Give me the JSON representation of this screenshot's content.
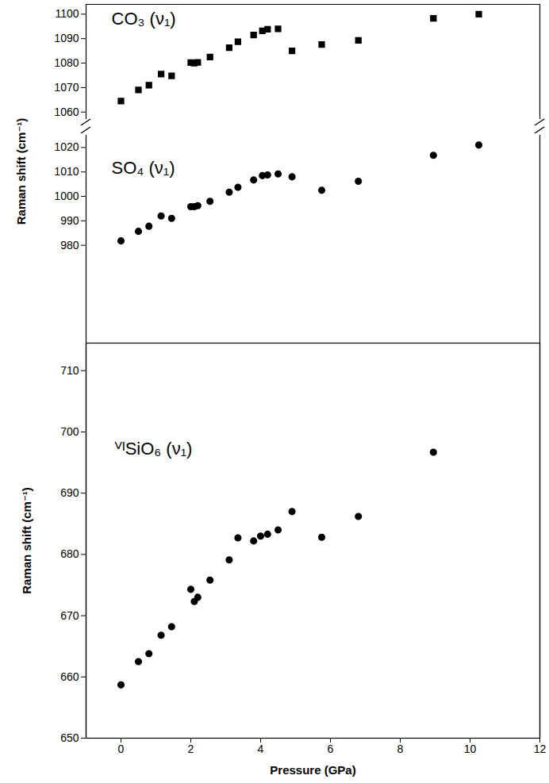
{
  "chart_data": [
    {
      "type": "scatter",
      "annotation": "CO₃ (ν₁)",
      "ylabel": "Raman shift (cm⁻¹)",
      "marker": "square",
      "color": "#000000",
      "tick_labels": "y",
      "xlim": [
        -1,
        12
      ],
      "ylim": [
        1057,
        1104
      ],
      "yticks": [
        1060,
        1070,
        1080,
        1090,
        1100
      ],
      "x": [
        0,
        0.5,
        0.8,
        1.15,
        1.45,
        2.0,
        2.1,
        2.2,
        2.55,
        3.1,
        3.35,
        3.8,
        4.05,
        4.2,
        4.5,
        4.9,
        5.75,
        6.8,
        8.95,
        10.25
      ],
      "values": [
        1064.5,
        1069,
        1071,
        1075.5,
        1074.8,
        1080.2,
        1080,
        1080.3,
        1082.5,
        1086.3,
        1088.7,
        1091.5,
        1093.2,
        1093.8,
        1094,
        1085,
        1087.6,
        1089.3,
        1098.3,
        1100
      ]
    },
    {
      "type": "scatter",
      "annotation": "SO₄ (ν₁)",
      "marker": "circle",
      "color": "#000000",
      "tick_labels": "y",
      "xlim": [
        -1,
        12
      ],
      "ylim": [
        940,
        1025
      ],
      "yticks": [
        980,
        990,
        1000,
        1010,
        1020
      ],
      "x": [
        0,
        0.5,
        0.8,
        1.15,
        1.45,
        2.0,
        2.1,
        2.2,
        2.55,
        3.1,
        3.35,
        3.8,
        4.05,
        4.2,
        4.5,
        4.9,
        5.75,
        6.8,
        8.95,
        10.25
      ],
      "values": [
        981.8,
        985.7,
        987.8,
        992,
        991,
        995.8,
        995.8,
        996.2,
        998,
        1001.7,
        1003.7,
        1006.7,
        1008.5,
        1008.8,
        1009.2,
        1008,
        1002.5,
        1006.2,
        1016.8,
        1021
      ]
    },
    {
      "type": "scatter",
      "annotation": "ⱽᴵSiO₆ (ν₁)",
      "xlabel": "Pressure (GPa)",
      "ylabel": "Raman shift (cm⁻¹)",
      "marker": "circle",
      "color": "#000000",
      "xlim": [
        -1,
        12
      ],
      "xticks": [
        0,
        2,
        4,
        6,
        8,
        10,
        12
      ],
      "ylim": [
        650,
        714.5
      ],
      "yticks": [
        650,
        660,
        670,
        680,
        690,
        700,
        710
      ],
      "x": [
        0,
        0.5,
        0.8,
        1.15,
        1.45,
        2.0,
        2.1,
        2.2,
        2.55,
        3.1,
        3.35,
        3.8,
        4.0,
        4.2,
        4.5,
        4.9,
        5.75,
        6.8,
        8.95
      ],
      "values": [
        658.7,
        662.5,
        663.8,
        666.8,
        668.2,
        674.3,
        672.3,
        673,
        675.8,
        679.1,
        682.7,
        682.2,
        683,
        683.3,
        684,
        687,
        682.8,
        686.2,
        696.7
      ]
    }
  ]
}
